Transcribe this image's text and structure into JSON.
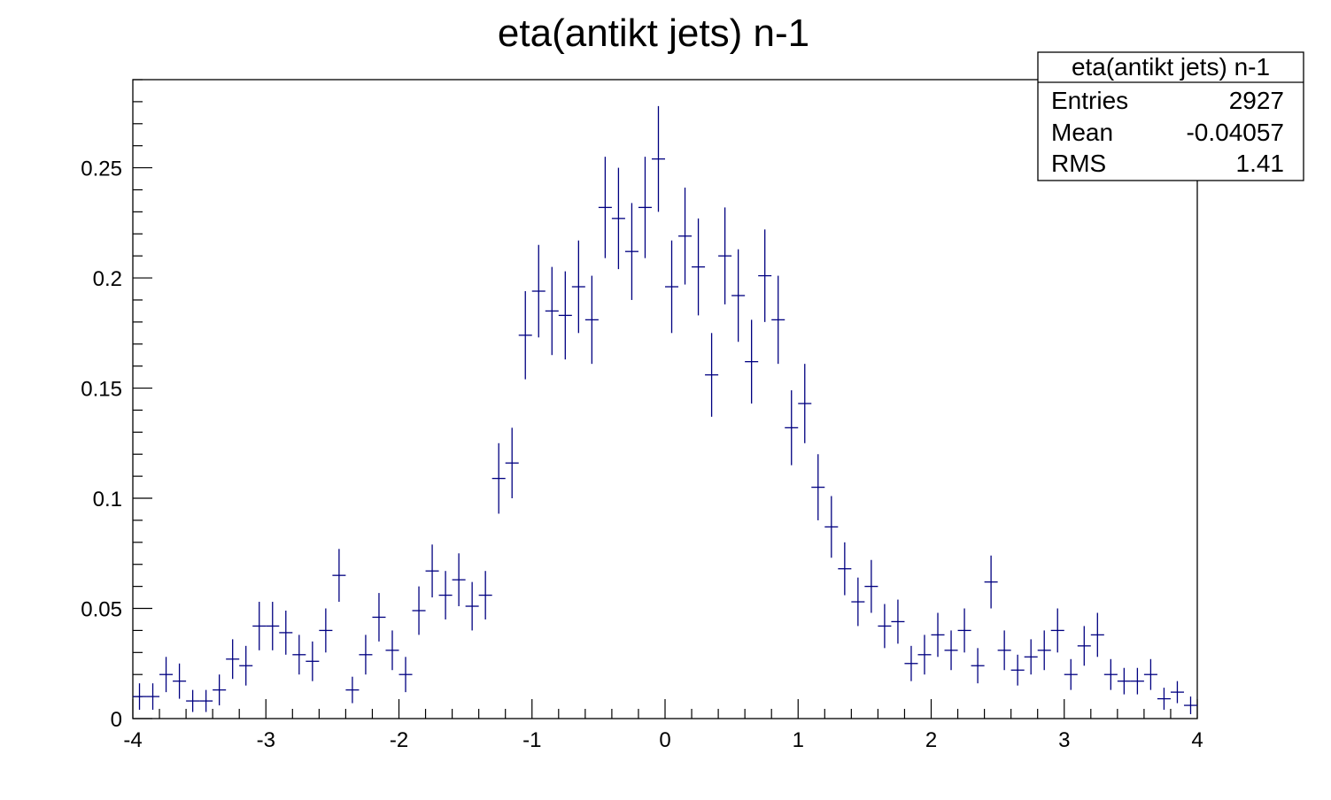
{
  "chart_data": {
    "type": "scatter",
    "title": "eta(antikt jets) n-1",
    "xlabel": "",
    "ylabel": "",
    "xlim": [
      -4,
      4
    ],
    "ylim": [
      0,
      0.29
    ],
    "grid": false,
    "error_bars": true,
    "bin_width": 0.1,
    "marker_color": "#000080",
    "x_ticks": [
      "-4",
      "-3",
      "-2",
      "-1",
      "0",
      "1",
      "2",
      "3",
      "4"
    ],
    "y_ticks": [
      "0",
      "0.05",
      "0.1",
      "0.15",
      "0.2",
      "0.25"
    ],
    "series": [
      {
        "x": [
          -3.95,
          -3.85,
          -3.75,
          -3.65,
          -3.55,
          -3.45,
          -3.35,
          -3.25,
          -3.15,
          -3.05,
          -2.95,
          -2.85,
          -2.75,
          -2.65,
          -2.55,
          -2.45,
          -2.35,
          -2.25,
          -2.15,
          -2.05,
          -1.95,
          -1.85,
          -1.75,
          -1.65,
          -1.55,
          -1.45,
          -1.35,
          -1.25,
          -1.15,
          -1.05,
          -0.95,
          -0.85,
          -0.75,
          -0.65,
          -0.55,
          -0.45,
          -0.35,
          -0.25,
          -0.15,
          -0.05,
          0.05,
          0.15,
          0.25,
          0.35,
          0.45,
          0.55,
          0.65,
          0.75,
          0.85,
          0.95,
          1.05,
          1.15,
          1.25,
          1.35,
          1.45,
          1.55,
          1.65,
          1.75,
          1.85,
          1.95,
          2.05,
          2.15,
          2.25,
          2.35,
          2.45,
          2.55,
          2.65,
          2.75,
          2.85,
          2.95,
          3.05,
          3.15,
          3.25,
          3.35,
          3.45,
          3.55,
          3.65,
          3.75,
          3.85,
          3.95
        ],
        "y": [
          0.01,
          0.01,
          0.02,
          0.017,
          0.008,
          0.008,
          0.013,
          0.027,
          0.024,
          0.042,
          0.042,
          0.039,
          0.029,
          0.026,
          0.04,
          0.065,
          0.013,
          0.029,
          0.046,
          0.031,
          0.02,
          0.049,
          0.067,
          0.056,
          0.063,
          0.051,
          0.056,
          0.109,
          0.116,
          0.174,
          0.194,
          0.185,
          0.183,
          0.196,
          0.181,
          0.232,
          0.227,
          0.212,
          0.232,
          0.254,
          0.196,
          0.219,
          0.205,
          0.156,
          0.21,
          0.192,
          0.162,
          0.201,
          0.181,
          0.132,
          0.143,
          0.105,
          0.087,
          0.068,
          0.053,
          0.06,
          0.042,
          0.044,
          0.025,
          0.029,
          0.038,
          0.031,
          0.04,
          0.024,
          0.062,
          0.031,
          0.022,
          0.028,
          0.031,
          0.04,
          0.02,
          0.033,
          0.038,
          0.02,
          0.017,
          0.017,
          0.02,
          0.009,
          0.012,
          0.006
        ],
        "err": [
          0.006,
          0.006,
          0.008,
          0.008,
          0.005,
          0.005,
          0.007,
          0.009,
          0.009,
          0.011,
          0.011,
          0.01,
          0.009,
          0.009,
          0.01,
          0.012,
          0.006,
          0.009,
          0.011,
          0.009,
          0.008,
          0.011,
          0.012,
          0.011,
          0.012,
          0.011,
          0.011,
          0.016,
          0.016,
          0.02,
          0.021,
          0.02,
          0.02,
          0.021,
          0.02,
          0.023,
          0.023,
          0.022,
          0.023,
          0.024,
          0.021,
          0.022,
          0.022,
          0.019,
          0.022,
          0.021,
          0.019,
          0.021,
          0.02,
          0.017,
          0.018,
          0.015,
          0.014,
          0.012,
          0.011,
          0.012,
          0.01,
          0.01,
          0.008,
          0.009,
          0.01,
          0.009,
          0.01,
          0.008,
          0.012,
          0.009,
          0.007,
          0.008,
          0.009,
          0.01,
          0.007,
          0.009,
          0.01,
          0.007,
          0.006,
          0.006,
          0.007,
          0.005,
          0.005,
          0.004
        ]
      }
    ]
  },
  "stats_box": {
    "title": "eta(antikt jets) n-1",
    "rows": [
      {
        "label": "Entries",
        "value": "2927"
      },
      {
        "label": "Mean",
        "value": "-0.04057"
      },
      {
        "label": "RMS",
        "value": "1.41"
      }
    ]
  }
}
